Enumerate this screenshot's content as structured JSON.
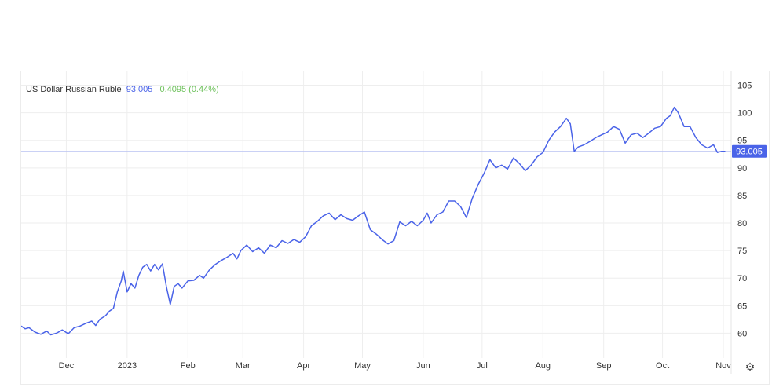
{
  "legend": {
    "name": "US Dollar Russian Ruble",
    "last": "93.005",
    "change": "0.4095 (0.44%)"
  },
  "settings_icon": "gear-icon",
  "colors": {
    "line": "#4a63e8",
    "change_up": "#6cc05a",
    "grid": "#eeeeee",
    "last_line": "#b9c2f2"
  },
  "chart_data": {
    "type": "line",
    "title": "",
    "xlabel": "",
    "ylabel": "",
    "ylim": [
      55.5,
      107.5
    ],
    "yticks": [
      60,
      65,
      70,
      75,
      80,
      85,
      90,
      95,
      100,
      105
    ],
    "xlim": [
      "2022-11-08",
      "2023-11-05"
    ],
    "xticks": [
      {
        "label": "Dec",
        "date": "2022-12-01"
      },
      {
        "label": "2023",
        "date": "2023-01-01"
      },
      {
        "label": "Feb",
        "date": "2023-02-01"
      },
      {
        "label": "Mar",
        "date": "2023-03-01"
      },
      {
        "label": "Apr",
        "date": "2023-04-01"
      },
      {
        "label": "May",
        "date": "2023-05-01"
      },
      {
        "label": "Jun",
        "date": "2023-06-01"
      },
      {
        "label": "Jul",
        "date": "2023-07-01"
      },
      {
        "label": "Aug",
        "date": "2023-08-01"
      },
      {
        "label": "Sep",
        "date": "2023-09-01"
      },
      {
        "label": "Oct",
        "date": "2023-10-01"
      },
      {
        "label": "Nov",
        "date": "2023-11-01"
      }
    ],
    "grid": true,
    "last_value_label": "93.005",
    "last_value": 93.005,
    "series": [
      {
        "name": "US Dollar Russian Ruble",
        "points": [
          [
            "2022-11-08",
            61.3
          ],
          [
            "2022-11-10",
            60.8
          ],
          [
            "2022-11-12",
            61.0
          ],
          [
            "2022-11-15",
            60.2
          ],
          [
            "2022-11-18",
            59.8
          ],
          [
            "2022-11-21",
            60.4
          ],
          [
            "2022-11-23",
            59.7
          ],
          [
            "2022-11-26",
            60.0
          ],
          [
            "2022-11-29",
            60.6
          ],
          [
            "2022-12-02",
            59.9
          ],
          [
            "2022-12-05",
            61.0
          ],
          [
            "2022-12-08",
            61.3
          ],
          [
            "2022-12-11",
            61.8
          ],
          [
            "2022-12-14",
            62.2
          ],
          [
            "2022-12-16",
            61.4
          ],
          [
            "2022-12-18",
            62.5
          ],
          [
            "2022-12-21",
            63.2
          ],
          [
            "2022-12-23",
            64.0
          ],
          [
            "2022-12-25",
            64.5
          ],
          [
            "2022-12-27",
            67.5
          ],
          [
            "2022-12-29",
            69.5
          ],
          [
            "2022-12-30",
            71.3
          ],
          [
            "2023-01-01",
            67.5
          ],
          [
            "2023-01-03",
            69.0
          ],
          [
            "2023-01-05",
            68.2
          ],
          [
            "2023-01-07",
            70.5
          ],
          [
            "2023-01-09",
            72.0
          ],
          [
            "2023-01-11",
            72.5
          ],
          [
            "2023-01-13",
            71.3
          ],
          [
            "2023-01-15",
            72.5
          ],
          [
            "2023-01-17",
            71.5
          ],
          [
            "2023-01-19",
            72.6
          ],
          [
            "2023-01-21",
            68.5
          ],
          [
            "2023-01-23",
            65.2
          ],
          [
            "2023-01-25",
            68.5
          ],
          [
            "2023-01-27",
            69.0
          ],
          [
            "2023-01-29",
            68.2
          ],
          [
            "2023-02-01",
            69.5
          ],
          [
            "2023-02-04",
            69.6
          ],
          [
            "2023-02-07",
            70.5
          ],
          [
            "2023-02-09",
            70.0
          ],
          [
            "2023-02-12",
            71.5
          ],
          [
            "2023-02-15",
            72.5
          ],
          [
            "2023-02-18",
            73.2
          ],
          [
            "2023-02-21",
            73.8
          ],
          [
            "2023-02-24",
            74.5
          ],
          [
            "2023-02-26",
            73.5
          ],
          [
            "2023-02-28",
            75.0
          ],
          [
            "2023-03-03",
            76.0
          ],
          [
            "2023-03-06",
            74.8
          ],
          [
            "2023-03-09",
            75.5
          ],
          [
            "2023-03-12",
            74.5
          ],
          [
            "2023-03-15",
            76.0
          ],
          [
            "2023-03-18",
            75.5
          ],
          [
            "2023-03-21",
            76.8
          ],
          [
            "2023-03-24",
            76.3
          ],
          [
            "2023-03-27",
            77.0
          ],
          [
            "2023-03-30",
            76.5
          ],
          [
            "2023-04-02",
            77.5
          ],
          [
            "2023-04-05",
            79.5
          ],
          [
            "2023-04-08",
            80.3
          ],
          [
            "2023-04-11",
            81.3
          ],
          [
            "2023-04-14",
            81.8
          ],
          [
            "2023-04-17",
            80.6
          ],
          [
            "2023-04-20",
            81.5
          ],
          [
            "2023-04-23",
            80.8
          ],
          [
            "2023-04-26",
            80.5
          ],
          [
            "2023-04-29",
            81.3
          ],
          [
            "2023-05-02",
            82.0
          ],
          [
            "2023-05-05",
            78.8
          ],
          [
            "2023-05-08",
            78.0
          ],
          [
            "2023-05-11",
            77.0
          ],
          [
            "2023-05-14",
            76.2
          ],
          [
            "2023-05-17",
            76.8
          ],
          [
            "2023-05-20",
            80.2
          ],
          [
            "2023-05-23",
            79.5
          ],
          [
            "2023-05-26",
            80.3
          ],
          [
            "2023-05-29",
            79.5
          ],
          [
            "2023-06-01",
            80.5
          ],
          [
            "2023-06-03",
            81.8
          ],
          [
            "2023-06-05",
            80.0
          ],
          [
            "2023-06-08",
            81.5
          ],
          [
            "2023-06-11",
            82.0
          ],
          [
            "2023-06-14",
            84.0
          ],
          [
            "2023-06-17",
            84.0
          ],
          [
            "2023-06-20",
            83.0
          ],
          [
            "2023-06-23",
            81.0
          ],
          [
            "2023-06-26",
            84.5
          ],
          [
            "2023-06-29",
            87.0
          ],
          [
            "2023-07-02",
            89.0
          ],
          [
            "2023-07-05",
            91.5
          ],
          [
            "2023-07-08",
            90.0
          ],
          [
            "2023-07-11",
            90.5
          ],
          [
            "2023-07-14",
            89.8
          ],
          [
            "2023-07-17",
            91.8
          ],
          [
            "2023-07-20",
            90.8
          ],
          [
            "2023-07-23",
            89.5
          ],
          [
            "2023-07-26",
            90.5
          ],
          [
            "2023-07-29",
            92.0
          ],
          [
            "2023-08-01",
            92.8
          ],
          [
            "2023-08-04",
            95.0
          ],
          [
            "2023-08-07",
            96.5
          ],
          [
            "2023-08-10",
            97.5
          ],
          [
            "2023-08-13",
            99.0
          ],
          [
            "2023-08-15",
            98.0
          ],
          [
            "2023-08-17",
            93.0
          ],
          [
            "2023-08-19",
            93.8
          ],
          [
            "2023-08-22",
            94.2
          ],
          [
            "2023-08-25",
            94.8
          ],
          [
            "2023-08-28",
            95.5
          ],
          [
            "2023-08-31",
            96.0
          ],
          [
            "2023-09-03",
            96.5
          ],
          [
            "2023-09-06",
            97.5
          ],
          [
            "2023-09-09",
            97.0
          ],
          [
            "2023-09-12",
            94.5
          ],
          [
            "2023-09-15",
            96.0
          ],
          [
            "2023-09-18",
            96.3
          ],
          [
            "2023-09-21",
            95.5
          ],
          [
            "2023-09-24",
            96.3
          ],
          [
            "2023-09-27",
            97.2
          ],
          [
            "2023-09-30",
            97.5
          ],
          [
            "2023-10-03",
            99.0
          ],
          [
            "2023-10-05",
            99.5
          ],
          [
            "2023-10-07",
            101.0
          ],
          [
            "2023-10-09",
            100.0
          ],
          [
            "2023-10-12",
            97.5
          ],
          [
            "2023-10-15",
            97.5
          ],
          [
            "2023-10-18",
            95.5
          ],
          [
            "2023-10-21",
            94.2
          ],
          [
            "2023-10-24",
            93.6
          ],
          [
            "2023-10-27",
            94.2
          ],
          [
            "2023-10-29",
            92.8
          ],
          [
            "2023-10-31",
            93.0
          ],
          [
            "2023-11-02",
            93.005
          ]
        ]
      }
    ]
  }
}
